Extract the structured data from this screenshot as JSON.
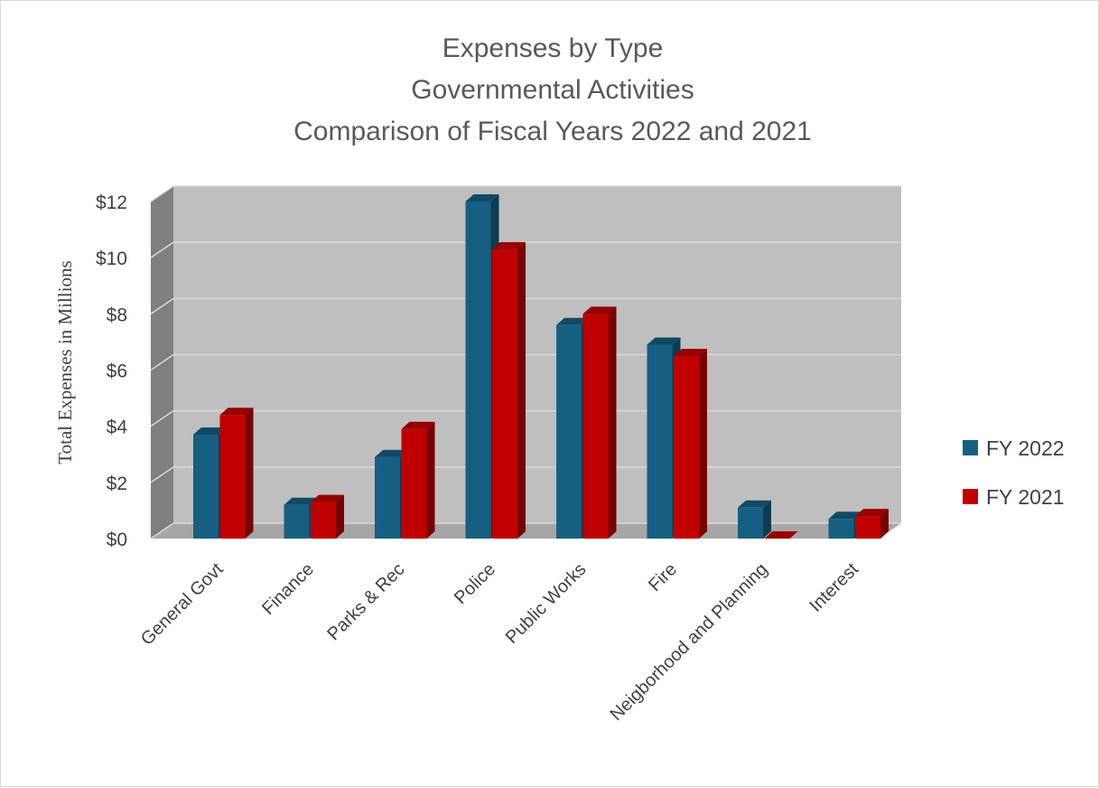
{
  "chart_data": {
    "type": "bar",
    "title_lines": [
      "Expenses by Type",
      "Governmental Activities",
      "Comparison of Fiscal Years 2022 and 2021"
    ],
    "ylabel": "Total Expenses in Millions",
    "xlabel": "",
    "ylim": [
      0,
      12
    ],
    "ytick_values": [
      0,
      2,
      4,
      6,
      8,
      10,
      12
    ],
    "ytick_labels": [
      "$0",
      "$2",
      "$4",
      "$6",
      "$8",
      "$10",
      "$12"
    ],
    "categories": [
      "General Govt",
      "Finance",
      "Parks & Rec",
      "Police",
      "Public Works",
      "Fire",
      "Neigborhood and Planning",
      "Interest"
    ],
    "series": [
      {
        "name": "FY 2022",
        "color": "#156082",
        "values": [
          3.7,
          1.2,
          2.9,
          12.0,
          7.6,
          6.9,
          1.1,
          0.7
        ]
      },
      {
        "name": "FY 2021",
        "color": "#c00000",
        "values": [
          4.4,
          1.3,
          3.9,
          10.3,
          8.0,
          6.5,
          0.0,
          0.8
        ]
      }
    ],
    "legend_position": "right",
    "grid": true,
    "style": "3d-clustered-column"
  }
}
